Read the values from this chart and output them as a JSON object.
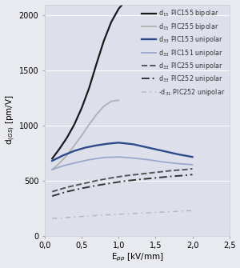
{
  "background_color": "#e8eaf0",
  "plot_bg_color": "#dde0eb",
  "outer_bg_color": "#e8eaf0",
  "xlim": [
    0,
    2.5
  ],
  "ylim": [
    0,
    2100
  ],
  "xlabel": "E$_{pp}$ [kV/mm]",
  "ylabel": "d$_{(GS)}$ [pm/V]",
  "xticks": [
    0.0,
    0.5,
    1.0,
    1.5,
    2.0,
    2.5
  ],
  "yticks": [
    0,
    500,
    1000,
    1500,
    2000
  ],
  "xtick_labels": [
    "0,0",
    "0,5",
    "1,0",
    "1,5",
    "2,0",
    "2,5"
  ],
  "ytick_labels": [
    "0",
    "500",
    "1000",
    "1500",
    "2000"
  ],
  "series": [
    {
      "label": "d$_{15}$ PIC155 bipolar",
      "color": "#1a1a1a",
      "linestyle": "-",
      "linewidth": 1.6,
      "x": [
        0.1,
        0.2,
        0.3,
        0.4,
        0.5,
        0.6,
        0.7,
        0.8,
        0.9,
        1.0,
        1.05
      ],
      "y": [
        700,
        790,
        890,
        1010,
        1160,
        1340,
        1560,
        1770,
        1940,
        2060,
        2100
      ]
    },
    {
      "label": "d$_{15}$ PIC255 bipolar",
      "color": "#b0b0b0",
      "linestyle": "-",
      "linewidth": 1.3,
      "x": [
        0.1,
        0.2,
        0.3,
        0.4,
        0.5,
        0.6,
        0.7,
        0.8,
        0.9,
        1.0
      ],
      "y": [
        600,
        660,
        730,
        820,
        910,
        1010,
        1100,
        1175,
        1220,
        1230
      ]
    },
    {
      "label": "d$_{33}$ PIC153 unipolar",
      "color": "#2e4a8a",
      "linestyle": "-",
      "linewidth": 1.7,
      "x": [
        0.1,
        0.25,
        0.4,
        0.55,
        0.7,
        0.85,
        1.0,
        1.2,
        1.4,
        1.6,
        1.8,
        2.0
      ],
      "y": [
        680,
        730,
        770,
        800,
        820,
        835,
        845,
        830,
        800,
        770,
        740,
        715
      ]
    },
    {
      "label": "d$_{33}$ PIC151 unipolar",
      "color": "#9aa8cc",
      "linestyle": "-",
      "linewidth": 1.3,
      "x": [
        0.1,
        0.25,
        0.4,
        0.6,
        0.8,
        1.0,
        1.2,
        1.4,
        1.6,
        1.8,
        2.0
      ],
      "y": [
        600,
        635,
        660,
        690,
        710,
        715,
        705,
        690,
        670,
        655,
        645
      ]
    },
    {
      "label": "d$_{33}$ PIC255 unipolar",
      "color": "#555555",
      "linestyle": "--",
      "linewidth": 1.4,
      "x": [
        0.1,
        0.3,
        0.5,
        0.7,
        0.9,
        1.1,
        1.3,
        1.5,
        1.7,
        1.9,
        2.0
      ],
      "y": [
        400,
        440,
        470,
        500,
        525,
        545,
        560,
        575,
        590,
        600,
        608
      ]
    },
    {
      "label": "d$_{33}$ PIC252 unipolar",
      "color": "#333333",
      "linestyle": "--",
      "linewidth": 1.4,
      "dashes": [
        5,
        2,
        1,
        2
      ],
      "x": [
        0.1,
        0.3,
        0.5,
        0.7,
        0.9,
        1.1,
        1.3,
        1.5,
        1.7,
        1.9,
        2.0
      ],
      "y": [
        360,
        400,
        430,
        456,
        478,
        498,
        512,
        525,
        538,
        548,
        555
      ]
    },
    {
      "label": "-d$_{31}$ PIC252 unipolar",
      "color": "#b8b8b8",
      "linestyle": "--",
      "linewidth": 1.1,
      "dashes": [
        4,
        3,
        1,
        3
      ],
      "x": [
        0.1,
        0.3,
        0.5,
        0.8,
        1.1,
        1.4,
        1.7,
        2.0
      ],
      "y": [
        157,
        165,
        175,
        188,
        198,
        208,
        218,
        228
      ]
    }
  ]
}
